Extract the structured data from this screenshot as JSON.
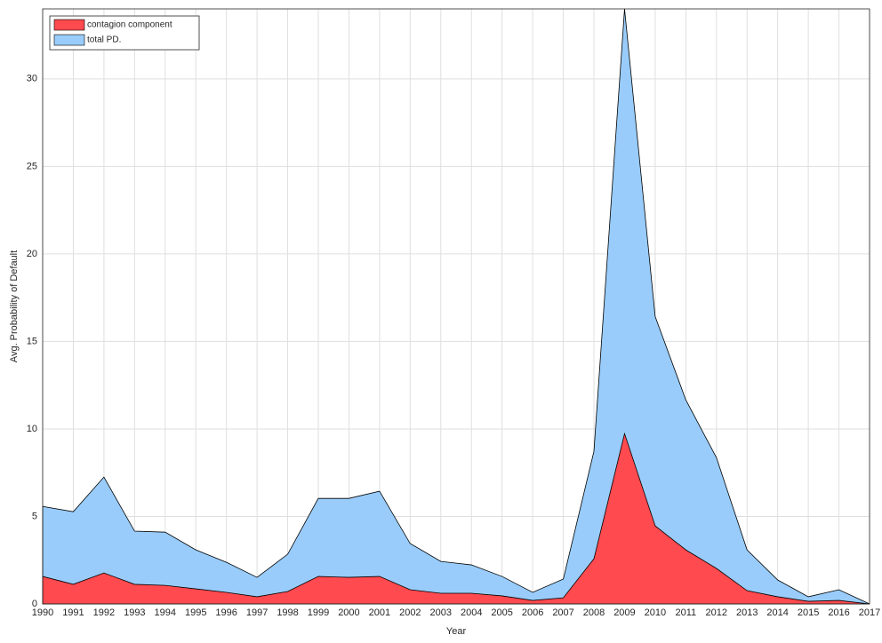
{
  "chart_data": {
    "type": "area",
    "x_label": "Year",
    "y_label": "Avg. Probability of Default",
    "x": [
      1990,
      1991,
      1992,
      1993,
      1994,
      1995,
      1996,
      1997,
      1998,
      1999,
      2000,
      2001,
      2002,
      2003,
      2004,
      2005,
      2006,
      2007,
      2008,
      2009,
      2010,
      2011,
      2012,
      2013,
      2014,
      2015,
      2016,
      2017
    ],
    "series": [
      {
        "name": "contagion component",
        "color": "#ff4a4f",
        "values": [
          1.57,
          1.12,
          1.77,
          1.12,
          1.06,
          0.86,
          0.66,
          0.41,
          0.71,
          1.57,
          1.52,
          1.57,
          0.81,
          0.61,
          0.61,
          0.46,
          0.2,
          0.35,
          2.58,
          9.73,
          4.46,
          3.09,
          2.03,
          0.76,
          0.41,
          0.15,
          0.2,
          0
        ]
      },
      {
        "name": "total PD.",
        "color": "#99ccfa",
        "values": [
          5.57,
          5.27,
          7.25,
          4.16,
          4.1,
          3.09,
          2.38,
          1.52,
          2.84,
          6.03,
          6.03,
          6.44,
          3.45,
          2.43,
          2.23,
          1.57,
          0.66,
          1.42,
          8.72,
          34,
          16.42,
          11.66,
          8.36,
          3.09,
          1.37,
          0.41,
          0.81,
          0
        ]
      }
    ],
    "xlim": [
      1990,
      2017
    ],
    "ylim": [
      0,
      34
    ],
    "xticks": [
      1990,
      1991,
      1992,
      1993,
      1994,
      1995,
      1996,
      1997,
      1998,
      1999,
      2000,
      2001,
      2002,
      2003,
      2004,
      2005,
      2006,
      2007,
      2008,
      2009,
      2010,
      2011,
      2012,
      2013,
      2014,
      2015,
      2016,
      2017
    ],
    "yticks": [
      0,
      5,
      10,
      15,
      20,
      25,
      30
    ],
    "grid": true,
    "legend": "top-left"
  }
}
